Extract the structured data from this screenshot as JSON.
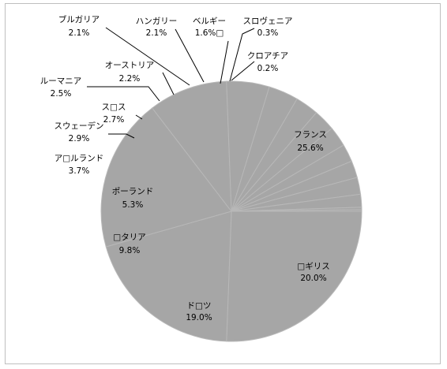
{
  "chart_data": {
    "type": "pie",
    "title": "",
    "legend": "none",
    "slices": [
      {
        "label": "フランス",
        "value": 25.6,
        "display": "25.6%"
      },
      {
        "label": "□ギリス",
        "value": 20.0,
        "display": "20.0%"
      },
      {
        "label": "ド□ツ",
        "value": 19.0,
        "display": "19.0%"
      },
      {
        "label": "□タリア",
        "value": 9.8,
        "display": "9.8%"
      },
      {
        "label": "ポーランド",
        "value": 5.3,
        "display": "5.3%"
      },
      {
        "label": "ア□ルランド",
        "value": 3.7,
        "display": "3.7%"
      },
      {
        "label": "スウェーデン",
        "value": 2.9,
        "display": "2.9%"
      },
      {
        "label": "ス□ス",
        "value": 2.7,
        "display": "2.7%"
      },
      {
        "label": "ルーマニア",
        "value": 2.5,
        "display": "2.5%"
      },
      {
        "label": "オーストリア",
        "value": 2.2,
        "display": "2.2%"
      },
      {
        "label": "ブルガリア",
        "value": 2.1,
        "display": "2.1%"
      },
      {
        "label": "ハンガリー",
        "value": 2.1,
        "display": "2.1%"
      },
      {
        "label": "ベルギー",
        "value": 1.6,
        "display": "1.6%□"
      },
      {
        "label": "スロヴェニア",
        "value": 0.3,
        "display": "0.3%"
      },
      {
        "label": "クロアチア",
        "value": 0.2,
        "display": "0.2%"
      }
    ],
    "slice_color": "#a6a6a6",
    "separator_color": "#b8b8b8"
  }
}
